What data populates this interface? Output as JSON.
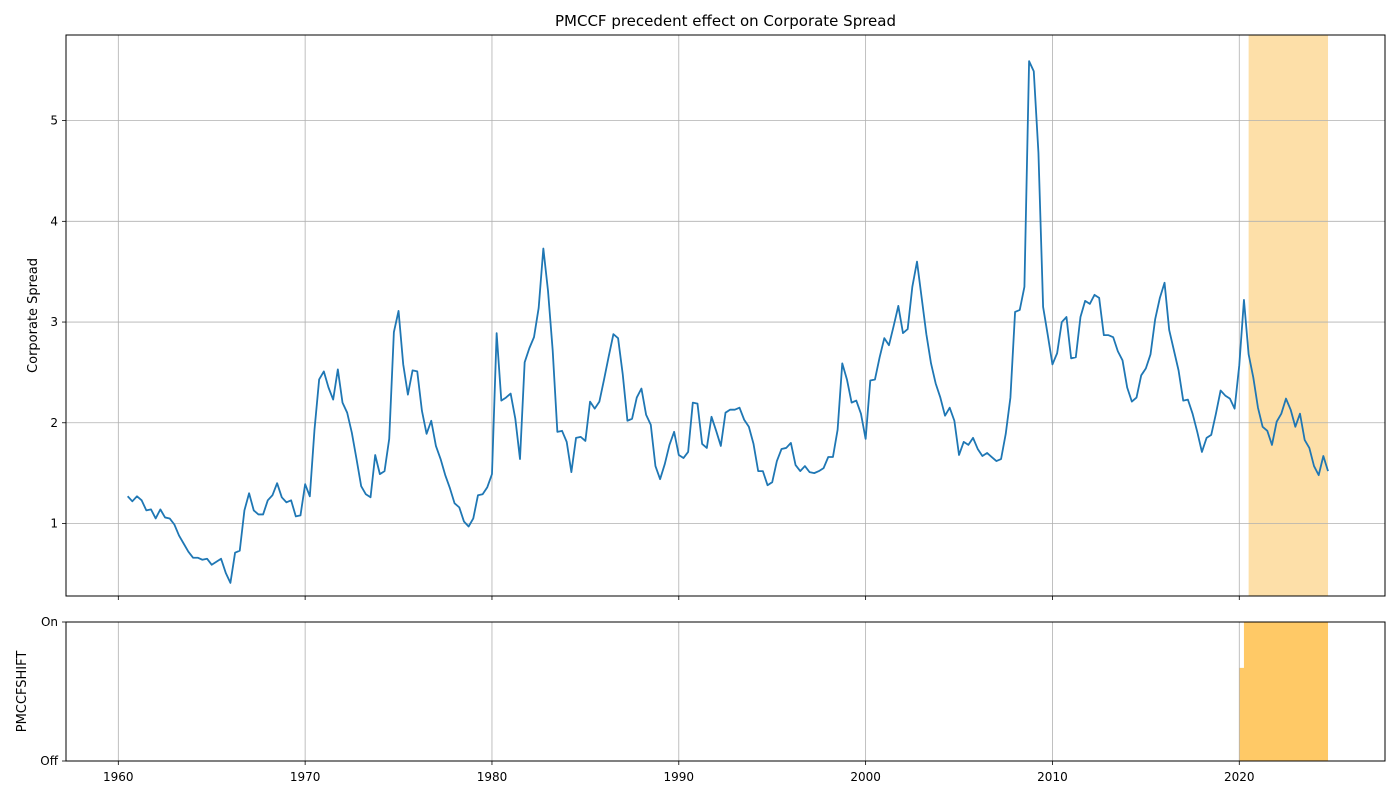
{
  "chart_data": [
    {
      "type": "line",
      "title": "PMCCF precedent effect on Corporate Spread",
      "xlabel": "",
      "ylabel": "Corporate Spread",
      "xlim": [
        1957.2,
        2027.8
      ],
      "ylim": [
        0.28,
        5.85
      ],
      "grid": true,
      "x_ticks": [
        1960,
        1970,
        1980,
        1990,
        2000,
        2010,
        2020
      ],
      "x_tick_labels": [
        "1960",
        "1970",
        "1980",
        "1990",
        "2000",
        "2010",
        "2020"
      ],
      "y_ticks": [
        1,
        2,
        3,
        4,
        5
      ],
      "y_tick_labels": [
        "1",
        "2",
        "3",
        "4",
        "5"
      ],
      "colors": {
        "line": "#1f77b4",
        "shade": "#fdd999"
      },
      "shaded_regions": [
        {
          "x_start": 2020.5,
          "x_end": 2024.75
        }
      ],
      "series": [
        {
          "x": [
            1960.5,
            1960.75,
            1961.0,
            1961.25,
            1961.5,
            1961.75,
            1962.0,
            1962.25,
            1962.5,
            1962.75,
            1963.0,
            1963.25,
            1963.5,
            1963.75,
            1964.0,
            1964.25,
            1964.5,
            1964.75,
            1965.0,
            1965.25,
            1965.5,
            1965.75,
            1966.0,
            1966.25,
            1966.5,
            1966.75,
            1967.0,
            1967.25,
            1967.5,
            1967.75,
            1968.0,
            1968.25,
            1968.5,
            1968.75,
            1969.0,
            1969.25,
            1969.5,
            1969.75,
            1970.0,
            1970.25,
            1970.5,
            1970.75,
            1971.0,
            1971.25,
            1971.5,
            1971.75,
            1972.0,
            1972.25,
            1972.5,
            1972.75,
            1973.0,
            1973.25,
            1973.5,
            1973.75,
            1974.0,
            1974.25,
            1974.5,
            1974.75,
            1975.0,
            1975.25,
            1975.5,
            1975.75,
            1976.0,
            1976.25,
            1976.5,
            1976.75,
            1977.0,
            1977.25,
            1977.5,
            1977.75,
            1978.0,
            1978.25,
            1978.5,
            1978.75,
            1979.0,
            1979.25,
            1979.5,
            1979.75,
            1980.0,
            1980.25,
            1980.5,
            1980.75,
            1981.0,
            1981.25,
            1981.5,
            1981.75,
            1982.0,
            1982.25,
            1982.5,
            1982.75,
            1983.0,
            1983.25,
            1983.5,
            1983.75,
            1984.0,
            1984.25,
            1984.5,
            1984.75,
            1985.0,
            1985.25,
            1985.5,
            1985.75,
            1986.0,
            1986.25,
            1986.5,
            1986.75,
            1987.0,
            1987.25,
            1987.5,
            1987.75,
            1988.0,
            1988.25,
            1988.5,
            1988.75,
            1989.0,
            1989.25,
            1989.5,
            1989.75,
            1990.0,
            1990.25,
            1990.5,
            1990.75,
            1991.0,
            1991.25,
            1991.5,
            1991.75,
            1992.0,
            1992.25,
            1992.5,
            1992.75,
            1993.0,
            1993.25,
            1993.5,
            1993.75,
            1994.0,
            1994.25,
            1994.5,
            1994.75,
            1995.0,
            1995.25,
            1995.5,
            1995.75,
            1996.0,
            1996.25,
            1996.5,
            1996.75,
            1997.0,
            1997.25,
            1997.5,
            1997.75,
            1998.0,
            1998.25,
            1998.5,
            1998.75,
            1999.0,
            1999.25,
            1999.5,
            1999.75,
            2000.0,
            2000.25,
            2000.5,
            2000.75,
            2001.0,
            2001.25,
            2001.5,
            2001.75,
            2002.0,
            2002.25,
            2002.5,
            2002.75,
            2003.0,
            2003.25,
            2003.5,
            2003.75,
            2004.0,
            2004.25,
            2004.5,
            2004.75,
            2005.0,
            2005.25,
            2005.5,
            2005.75,
            2006.0,
            2006.25,
            2006.5,
            2006.75,
            2007.0,
            2007.25,
            2007.5,
            2007.75,
            2008.0,
            2008.25,
            2008.5,
            2008.75,
            2009.0,
            2009.25,
            2009.5,
            2009.75,
            2010.0,
            2010.25,
            2010.5,
            2010.75,
            2011.0,
            2011.25,
            2011.5,
            2011.75,
            2012.0,
            2012.25,
            2012.5,
            2012.75,
            2013.0,
            2013.25,
            2013.5,
            2013.75,
            2014.0,
            2014.25,
            2014.5,
            2014.75,
            2015.0,
            2015.25,
            2015.5,
            2015.75,
            2016.0,
            2016.25,
            2016.5,
            2016.75,
            2017.0,
            2017.25,
            2017.5,
            2017.75,
            2018.0,
            2018.25,
            2018.5,
            2018.75,
            2019.0,
            2019.25,
            2019.5,
            2019.75,
            2020.0,
            2020.25,
            2020.5,
            2020.75,
            2021.0,
            2021.25,
            2021.5,
            2021.75,
            2022.0,
            2022.25,
            2022.5,
            2022.75,
            2023.0,
            2023.25,
            2023.5,
            2023.75,
            2024.0,
            2024.25,
            2024.5,
            2024.75
          ],
          "y": [
            1.27,
            1.22,
            1.27,
            1.23,
            1.13,
            1.14,
            1.05,
            1.14,
            1.06,
            1.05,
            0.99,
            0.88,
            0.8,
            0.72,
            0.66,
            0.66,
            0.64,
            0.65,
            0.59,
            0.62,
            0.65,
            0.51,
            0.41,
            0.71,
            0.73,
            1.13,
            1.3,
            1.13,
            1.09,
            1.09,
            1.23,
            1.28,
            1.4,
            1.26,
            1.21,
            1.23,
            1.07,
            1.08,
            1.39,
            1.27,
            1.93,
            2.43,
            2.51,
            2.35,
            2.23,
            2.53,
            2.2,
            2.1,
            1.9,
            1.64,
            1.37,
            1.29,
            1.26,
            1.68,
            1.49,
            1.52,
            1.84,
            2.9,
            3.11,
            2.58,
            2.28,
            2.52,
            2.51,
            2.12,
            1.89,
            2.02,
            1.77,
            1.64,
            1.48,
            1.35,
            1.2,
            1.16,
            1.02,
            0.97,
            1.05,
            1.28,
            1.29,
            1.36,
            1.49,
            2.89,
            2.22,
            2.25,
            2.29,
            2.04,
            1.64,
            2.6,
            2.74,
            2.85,
            3.14,
            3.73,
            3.31,
            2.72,
            1.91,
            1.92,
            1.81,
            1.51,
            1.85,
            1.86,
            1.82,
            2.21,
            2.14,
            2.21,
            2.43,
            2.66,
            2.88,
            2.84,
            2.48,
            2.02,
            2.04,
            2.25,
            2.34,
            2.08,
            1.98,
            1.57,
            1.44,
            1.59,
            1.78,
            1.91,
            1.68,
            1.65,
            1.71,
            2.2,
            2.19,
            1.79,
            1.75,
            2.06,
            1.92,
            1.77,
            2.1,
            2.13,
            2.13,
            2.15,
            2.03,
            1.96,
            1.79,
            1.52,
            1.52,
            1.38,
            1.41,
            1.62,
            1.74,
            1.75,
            1.8,
            1.58,
            1.52,
            1.57,
            1.51,
            1.5,
            1.52,
            1.55,
            1.66,
            1.66,
            1.93,
            2.59,
            2.43,
            2.2,
            2.22,
            2.09,
            1.84,
            2.42,
            2.43,
            2.65,
            2.84,
            2.77,
            2.96,
            3.16,
            2.89,
            2.93,
            3.35,
            3.6,
            3.24,
            2.88,
            2.59,
            2.39,
            2.25,
            2.07,
            2.15,
            2.02,
            1.68,
            1.81,
            1.78,
            1.85,
            1.74,
            1.67,
            1.7,
            1.66,
            1.62,
            1.64,
            1.89,
            2.25,
            3.1,
            3.12,
            3.35,
            5.59,
            5.49,
            4.68,
            3.15,
            2.87,
            2.58,
            2.69,
            3.0,
            3.05,
            2.64,
            2.65,
            3.05,
            3.21,
            3.18,
            3.27,
            3.24,
            2.87,
            2.87,
            2.85,
            2.71,
            2.62,
            2.35,
            2.21,
            2.25,
            2.47,
            2.54,
            2.68,
            3.03,
            3.24,
            3.39,
            2.92,
            2.72,
            2.52,
            2.22,
            2.23,
            2.09,
            1.91,
            1.71,
            1.85,
            1.88,
            2.09,
            2.32,
            2.27,
            2.24,
            2.14,
            2.57,
            3.22,
            2.68,
            2.45,
            2.15,
            1.96,
            1.92,
            1.78,
            2.01,
            2.09,
            2.24,
            2.13,
            1.96,
            2.09,
            1.83,
            1.75,
            1.57,
            1.48,
            1.67,
            1.52
          ]
        }
      ]
    },
    {
      "type": "area",
      "ylabel": "PMCCFSHIFT",
      "xlim": [
        1957.2,
        2027.8
      ],
      "ylim": [
        0,
        1
      ],
      "grid": true,
      "x_ticks": [
        1960,
        1970,
        1980,
        1990,
        2000,
        2010,
        2020
      ],
      "x_tick_labels": [
        "1960",
        "1970",
        "1980",
        "1990",
        "2000",
        "2010",
        "2020"
      ],
      "y_ticks": [
        0,
        1
      ],
      "y_tick_labels": [
        "Off",
        "On"
      ],
      "colors": {
        "fill": "#ffc966"
      },
      "series": [
        {
          "x": [
            2020.0,
            2020.25,
            2020.5,
            2024.75
          ],
          "y": [
            0.67,
            1.0,
            1.0,
            1.0
          ]
        }
      ]
    }
  ]
}
